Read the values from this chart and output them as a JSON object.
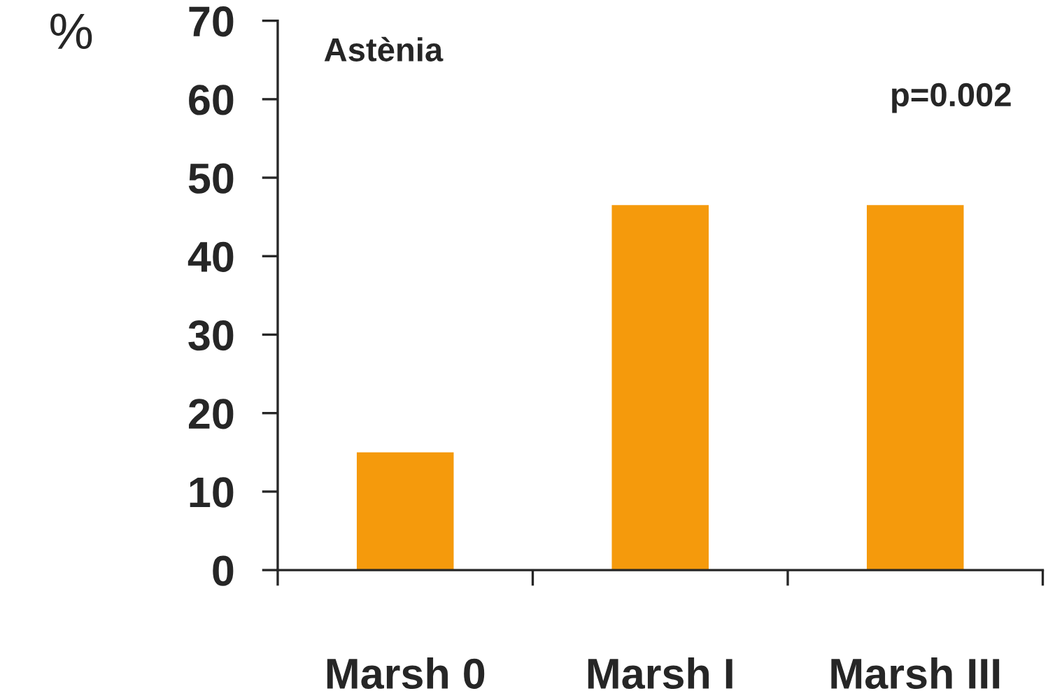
{
  "chart_data": {
    "type": "bar",
    "title": "Astènia",
    "ylabel": "%",
    "categories": [
      "Marsh 0",
      "Marsh I",
      "Marsh III"
    ],
    "values": [
      15,
      46.5,
      46.5
    ],
    "color": "#f59a0c",
    "ylim": [
      0,
      70
    ],
    "yticks": [
      0,
      10,
      20,
      30,
      40,
      50,
      60,
      70
    ],
    "grid": false,
    "annotations": [
      "p=0.002"
    ]
  }
}
